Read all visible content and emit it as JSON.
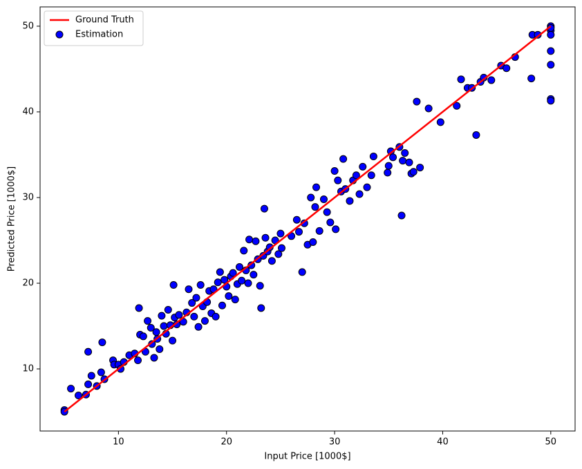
{
  "chart_data": {
    "type": "scatter",
    "xlabel": "Input Price [1000$]",
    "ylabel": "Predicted Price [1000$]",
    "xlim": [
      2.75,
      52.25
    ],
    "ylim": [
      2.75,
      52.25
    ],
    "xticks": [
      10,
      20,
      30,
      40,
      50
    ],
    "yticks": [
      10,
      20,
      30,
      40,
      50
    ],
    "legend": "upper left",
    "series": [
      {
        "name": "Ground Truth",
        "type": "line",
        "color": "#ff0000",
        "x": [
          5,
          50
        ],
        "values": [
          5,
          50
        ]
      },
      {
        "name": "Estimation",
        "type": "scatter",
        "color": "#0000ff",
        "edgecolor": "#000000",
        "x": [
          5,
          5,
          5.6,
          6.3,
          7,
          7.2,
          7.2,
          7.5,
          8,
          8.4,
          8.5,
          8.7,
          9.5,
          9.6,
          10,
          10.2,
          10.5,
          11,
          11.5,
          11.8,
          11.9,
          12,
          12.3,
          12.5,
          12.7,
          13,
          13.1,
          13.3,
          13.5,
          13.6,
          13.8,
          14,
          14.2,
          14.4,
          14.6,
          14.8,
          15,
          15.1,
          15.2,
          15.4,
          15.6,
          16,
          16.3,
          16.5,
          16.8,
          17,
          17.2,
          17.4,
          17.6,
          17.8,
          18,
          18.2,
          18.4,
          18.6,
          18.8,
          19,
          19.2,
          19.4,
          19.6,
          19.8,
          20,
          20.2,
          20.4,
          20.6,
          20.8,
          21,
          21.2,
          21.4,
          21.6,
          21.8,
          22,
          22.1,
          22.3,
          22.5,
          22.7,
          22.9,
          23.1,
          23.2,
          23.4,
          23.5,
          23.6,
          23.8,
          24,
          24.2,
          24.5,
          24.8,
          25,
          25.1,
          26,
          26.5,
          26.7,
          27,
          27.2,
          27.5,
          27.8,
          28,
          28.2,
          28.3,
          28.6,
          29,
          29.3,
          29.6,
          30,
          30.1,
          30.3,
          30.6,
          30.8,
          31,
          31.4,
          31.7,
          32,
          32.3,
          32.6,
          33,
          33.4,
          33.6,
          34.9,
          35,
          35.2,
          35.4,
          36,
          36.2,
          36.3,
          36.5,
          36.9,
          37.1,
          37.3,
          37.6,
          37.9,
          38.7,
          39.8,
          41.3,
          41.7,
          42.3,
          42.7,
          43.1,
          43.5,
          43.8,
          44.5,
          45.4,
          45.9,
          46.7,
          48.2,
          48.3,
          48.8,
          50,
          50,
          50,
          50,
          50,
          50,
          50,
          50
        ],
        "values": [
          5.2,
          5,
          7.7,
          6.9,
          7,
          8.2,
          12,
          9.2,
          8,
          9.6,
          13.1,
          8.8,
          11,
          10.5,
          10.5,
          10,
          10.8,
          11.6,
          11.8,
          11,
          17.1,
          14,
          13.8,
          12,
          15.6,
          14.8,
          12.9,
          11.3,
          14.3,
          13.5,
          12.3,
          16.2,
          15,
          14.1,
          16.9,
          15.1,
          13.3,
          19.8,
          16,
          15.2,
          16.3,
          15.5,
          16.6,
          19.3,
          17.7,
          16.1,
          18.3,
          14.9,
          19.8,
          17.3,
          15.6,
          17.8,
          19.1,
          16.5,
          19.3,
          16.1,
          20.1,
          21.3,
          17.4,
          20.4,
          19.6,
          18.5,
          20.8,
          21.2,
          18.1,
          19.9,
          21.9,
          20.3,
          23.8,
          21.5,
          20,
          25.1,
          22.1,
          21,
          24.9,
          22.8,
          19.7,
          17.1,
          23.2,
          28.7,
          25.3,
          23.7,
          24.2,
          22.6,
          25,
          23.4,
          25.8,
          24.1,
          25.5,
          27.4,
          26,
          21.3,
          27,
          24.5,
          30,
          24.8,
          28.9,
          31.2,
          26.1,
          29.8,
          28.3,
          27.1,
          33.1,
          26.3,
          32,
          30.7,
          34.5,
          31,
          29.6,
          32,
          32.6,
          30.4,
          33.6,
          31.2,
          32.6,
          34.8,
          32.9,
          33.7,
          35.4,
          34.7,
          35.9,
          27.9,
          34.3,
          35.2,
          34.1,
          32.8,
          33,
          41.2,
          33.5,
          40.4,
          38.8,
          40.7,
          43.8,
          42.8,
          42.8,
          37.3,
          43.5,
          44,
          43.7,
          45.4,
          45.1,
          46.4,
          43.9,
          49,
          49,
          50,
          49.5,
          49,
          47.1,
          45.5,
          41.5,
          41.3,
          49.8
        ]
      }
    ]
  }
}
